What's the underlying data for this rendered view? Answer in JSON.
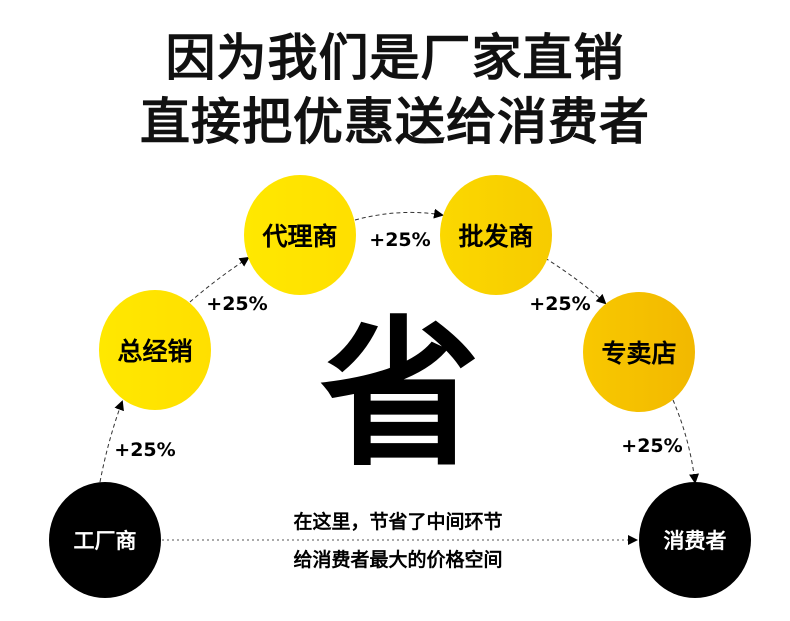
{
  "title_line1": "因为我们是厂家直销",
  "title_line2": "直接把优惠送给消费者",
  "center_char": "省",
  "nodes": {
    "factory": "工厂商",
    "general": "总经销",
    "agent": "代理商",
    "wholesale": "批发商",
    "store": "专卖店",
    "consumer": "消费者"
  },
  "markups": [
    "+25%",
    "+25%",
    "+25%",
    "+25%",
    "+25%"
  ],
  "bottom_text_line1": "在这里，节省了中间环节",
  "bottom_text_line2": "给消费者最大的价格空间",
  "colors": {
    "yellow": "#ffe600",
    "orange": "#f7c000",
    "black": "#000000"
  }
}
